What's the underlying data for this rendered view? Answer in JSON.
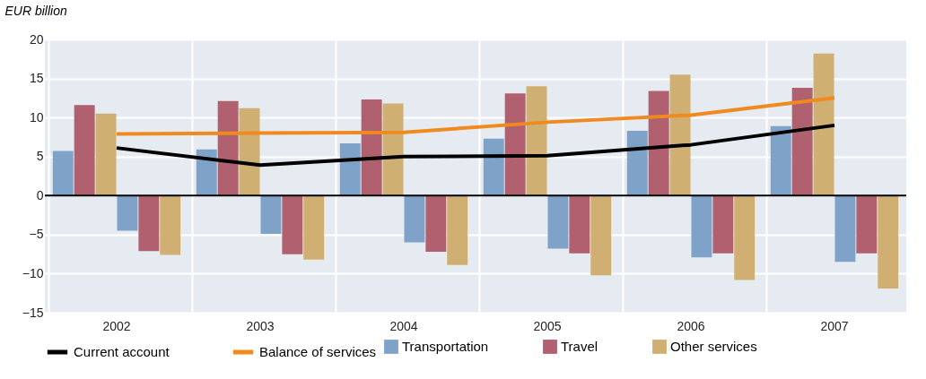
{
  "chart_data": {
    "type": "bar",
    "ylabel": "EUR billion",
    "categories": [
      "2002",
      "2003",
      "2004",
      "2005",
      "2006",
      "2007"
    ],
    "series": [
      {
        "name": "Transportation",
        "color": "#7fa3c8",
        "values": [
          5.7,
          5.9,
          6.7,
          7.3,
          8.3,
          8.9
        ]
      },
      {
        "name": "Travel",
        "color": "#b0606f",
        "values": [
          11.6,
          12.1,
          12.3,
          13.1,
          13.4,
          13.8
        ]
      },
      {
        "name": "Other services",
        "color": "#d0b072",
        "values": [
          10.5,
          11.2,
          11.8,
          14.0,
          15.5,
          18.2
        ]
      },
      {
        "color": "#7fa3c8",
        "values": [
          -4.5,
          -4.9,
          -6.0,
          -6.8,
          -7.9,
          -8.5
        ]
      },
      {
        "color": "#b0606f",
        "values": [
          -7.1,
          -7.5,
          -7.2,
          -7.4,
          -7.4,
          -7.4
        ]
      },
      {
        "color": "#d0b072",
        "values": [
          -7.6,
          -8.2,
          -8.9,
          -10.2,
          -10.8,
          -11.9
        ]
      },
      {
        "name": "Current account",
        "type": "line",
        "color": "#000000",
        "values": [
          6.1,
          3.9,
          5.0,
          5.1,
          6.5,
          9.0
        ]
      },
      {
        "name": "Balance of services",
        "type": "line",
        "color": "#f08a1e",
        "values": [
          7.9,
          8.0,
          8.1,
          9.4,
          10.3,
          12.5
        ]
      }
    ],
    "ylim": [
      -15,
      20
    ],
    "yticks": [
      -15,
      -10,
      -5,
      0,
      5,
      10,
      15,
      20
    ],
    "grid": true,
    "legend": "bottom",
    "ref_lines": [
      {
        "axis": "y",
        "value": 0,
        "color": "#000000"
      }
    ]
  }
}
